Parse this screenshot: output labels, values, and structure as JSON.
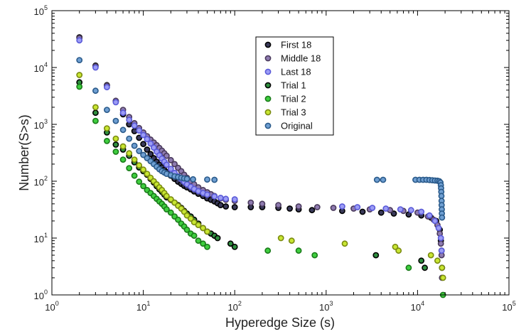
{
  "chart_data": {
    "type": "scatter",
    "title": "",
    "xlabel": "Hyperedge Size (s)",
    "ylabel": "Number(S>s)",
    "xscale": "log",
    "yscale": "log",
    "xlim": [
      1,
      100000
    ],
    "ylim": [
      1,
      100000
    ],
    "x_tick_labels": [
      {
        "base": "10",
        "exp": "0",
        "value": 1
      },
      {
        "base": "10",
        "exp": "1",
        "value": 10
      },
      {
        "base": "10",
        "exp": "2",
        "value": 100
      },
      {
        "base": "10",
        "exp": "3",
        "value": 1000
      },
      {
        "base": "10",
        "exp": "4",
        "value": 10000
      },
      {
        "base": "10",
        "exp": "5",
        "value": 100000
      }
    ],
    "y_tick_labels": [
      {
        "base": "10",
        "exp": "0",
        "value": 1
      },
      {
        "base": "10",
        "exp": "1",
        "value": 10
      },
      {
        "base": "10",
        "exp": "2",
        "value": 100
      },
      {
        "base": "10",
        "exp": "3",
        "value": 1000
      },
      {
        "base": "10",
        "exp": "4",
        "value": 10000
      },
      {
        "base": "10",
        "exp": "5",
        "value": 100000
      }
    ],
    "legend_position": "top-center",
    "grid": false,
    "series": [
      {
        "name": "First 18",
        "face": "#3a3a5a",
        "edge": "#000000",
        "points": [
          [
            2,
            34000
          ],
          [
            3,
            10800
          ],
          [
            4,
            4900
          ],
          [
            5,
            2550
          ],
          [
            6,
            1500
          ],
          [
            7,
            1000
          ],
          [
            8,
            760
          ],
          [
            9,
            580
          ],
          [
            10,
            450
          ],
          [
            11,
            360
          ],
          [
            12,
            300
          ],
          [
            13,
            255
          ],
          [
            14,
            220
          ],
          [
            15,
            195
          ],
          [
            16,
            175
          ],
          [
            17,
            158
          ],
          [
            18,
            145
          ],
          [
            20,
            125
          ],
          [
            22,
            110
          ],
          [
            24,
            98
          ],
          [
            26,
            90
          ],
          [
            28,
            83
          ],
          [
            30,
            78
          ],
          [
            33,
            72
          ],
          [
            36,
            66
          ],
          [
            40,
            60
          ],
          [
            45,
            55
          ],
          [
            50,
            50
          ],
          [
            55,
            47
          ],
          [
            60,
            44
          ],
          [
            65,
            41
          ],
          [
            70,
            38
          ],
          [
            80,
            36
          ],
          [
            100,
            35
          ],
          [
            150,
            35
          ],
          [
            200,
            35
          ],
          [
            300,
            34
          ],
          [
            400,
            33
          ],
          [
            500,
            32
          ],
          [
            700,
            31
          ],
          [
            1500,
            30
          ],
          [
            2500,
            29
          ],
          [
            4000,
            28
          ],
          [
            5500,
            27
          ],
          [
            8000,
            26
          ],
          [
            11000,
            25
          ],
          [
            14000,
            23
          ],
          [
            16000,
            20
          ],
          [
            17500,
            14
          ],
          [
            18000,
            9
          ],
          [
            18300,
            6
          ],
          [
            18500,
            3
          ]
        ]
      },
      {
        "name": "Middle 18",
        "face": "#8e7bb0",
        "edge": "#4a3a5c",
        "points": [
          [
            2,
            33000
          ],
          [
            3,
            10500
          ],
          [
            4,
            4800
          ],
          [
            5,
            2600
          ],
          [
            6,
            1800
          ],
          [
            7,
            1350
          ],
          [
            8,
            1050
          ],
          [
            9,
            860
          ],
          [
            10,
            720
          ],
          [
            11,
            620
          ],
          [
            12,
            540
          ],
          [
            13,
            480
          ],
          [
            14,
            430
          ],
          [
            15,
            385
          ],
          [
            16,
            345
          ],
          [
            17,
            310
          ],
          [
            18,
            280
          ],
          [
            20,
            235
          ],
          [
            22,
            200
          ],
          [
            24,
            172
          ],
          [
            26,
            150
          ],
          [
            28,
            130
          ],
          [
            30,
            115
          ],
          [
            33,
            100
          ],
          [
            36,
            88
          ],
          [
            40,
            78
          ],
          [
            45,
            70
          ],
          [
            50,
            64
          ],
          [
            55,
            59
          ],
          [
            60,
            55
          ],
          [
            70,
            50
          ],
          [
            80,
            47
          ],
          [
            100,
            45
          ],
          [
            150,
            42
          ],
          [
            200,
            40
          ],
          [
            300,
            38
          ],
          [
            500,
            36
          ],
          [
            800,
            35
          ],
          [
            1200,
            34
          ],
          [
            2000,
            33
          ],
          [
            3000,
            32
          ],
          [
            5000,
            31
          ],
          [
            7000,
            30
          ],
          [
            10000,
            28
          ],
          [
            13000,
            24
          ],
          [
            15000,
            21
          ],
          [
            16500,
            17
          ],
          [
            17500,
            12
          ],
          [
            18000,
            8
          ],
          [
            18300,
            5
          ],
          [
            18500,
            2
          ]
        ]
      },
      {
        "name": "Last 18",
        "face": "#9b9cf5",
        "edge": "#5a5ad8",
        "points": [
          [
            2,
            30000
          ],
          [
            3,
            10000
          ],
          [
            4,
            4500
          ],
          [
            5,
            2450
          ],
          [
            6,
            1600
          ],
          [
            7,
            1200
          ],
          [
            8,
            950
          ],
          [
            9,
            780
          ],
          [
            10,
            650
          ],
          [
            11,
            550
          ],
          [
            12,
            460
          ],
          [
            13,
            390
          ],
          [
            14,
            330
          ],
          [
            15,
            285
          ],
          [
            16,
            250
          ],
          [
            17,
            220
          ],
          [
            18,
            195
          ],
          [
            20,
            165
          ],
          [
            22,
            140
          ],
          [
            24,
            122
          ],
          [
            26,
            108
          ],
          [
            28,
            97
          ],
          [
            30,
            88
          ],
          [
            33,
            80
          ],
          [
            36,
            73
          ],
          [
            40,
            67
          ],
          [
            45,
            62
          ],
          [
            50,
            58
          ],
          [
            60,
            54
          ],
          [
            70,
            51
          ],
          [
            80,
            49
          ],
          [
            100,
            48
          ],
          [
            1500,
            36
          ],
          [
            2200,
            35
          ],
          [
            3200,
            34
          ],
          [
            4500,
            33
          ],
          [
            6500,
            32
          ],
          [
            8500,
            31
          ],
          [
            11000,
            29
          ],
          [
            13500,
            25
          ],
          [
            15500,
            20
          ],
          [
            17000,
            15
          ],
          [
            18000,
            10
          ],
          [
            18300,
            6
          ],
          [
            18500,
            3
          ]
        ]
      },
      {
        "name": "Trial 1",
        "face": "#2f8f3f",
        "edge": "#000000",
        "points": [
          [
            2,
            5500
          ],
          [
            3,
            1600
          ],
          [
            4,
            720
          ],
          [
            5,
            440
          ],
          [
            6,
            360
          ],
          [
            7,
            280
          ],
          [
            8,
            215
          ],
          [
            9,
            175
          ],
          [
            10,
            150
          ],
          [
            11,
            130
          ],
          [
            12,
            110
          ],
          [
            13,
            95
          ],
          [
            14,
            82
          ],
          [
            15,
            72
          ],
          [
            16,
            65
          ],
          [
            17,
            58
          ],
          [
            18,
            52
          ],
          [
            20,
            47
          ],
          [
            22,
            42
          ],
          [
            24,
            38
          ],
          [
            26,
            34
          ],
          [
            28,
            30
          ],
          [
            30,
            27
          ],
          [
            33,
            24
          ],
          [
            36,
            21
          ],
          [
            40,
            18
          ],
          [
            45,
            15
          ],
          [
            50,
            13
          ],
          [
            55,
            12
          ],
          [
            60,
            11
          ],
          [
            65,
            10
          ],
          [
            90,
            8
          ],
          [
            100,
            7
          ],
          [
            3500,
            5
          ],
          [
            11000,
            4
          ],
          [
            12000,
            3
          ]
        ]
      },
      {
        "name": "Trial 2",
        "face": "#3fce3f",
        "edge": "#1a7a1a",
        "points": [
          [
            2,
            4600
          ],
          [
            3,
            1150
          ],
          [
            4,
            510
          ],
          [
            5,
            330
          ],
          [
            6,
            240
          ],
          [
            7,
            170
          ],
          [
            8,
            125
          ],
          [
            9,
            98
          ],
          [
            10,
            82
          ],
          [
            11,
            70
          ],
          [
            12,
            62
          ],
          [
            13,
            55
          ],
          [
            14,
            49
          ],
          [
            15,
            44
          ],
          [
            16,
            40
          ],
          [
            17,
            36
          ],
          [
            18,
            32
          ],
          [
            20,
            28
          ],
          [
            22,
            24
          ],
          [
            24,
            21
          ],
          [
            26,
            18
          ],
          [
            28,
            16
          ],
          [
            30,
            14
          ],
          [
            33,
            12
          ],
          [
            36,
            11
          ],
          [
            40,
            9
          ],
          [
            45,
            8
          ],
          [
            50,
            7
          ],
          [
            230,
            6
          ],
          [
            500,
            6
          ],
          [
            750,
            5
          ],
          [
            8000,
            3
          ],
          [
            19000,
            1
          ]
        ]
      },
      {
        "name": "Trial 3",
        "face": "#c8e632",
        "edge": "#7a8a10",
        "points": [
          [
            2,
            7400
          ],
          [
            3,
            2000
          ],
          [
            4,
            850
          ],
          [
            5,
            560
          ],
          [
            6,
            410
          ],
          [
            7,
            310
          ],
          [
            8,
            240
          ],
          [
            9,
            190
          ],
          [
            10,
            160
          ],
          [
            11,
            135
          ],
          [
            12,
            115
          ],
          [
            13,
            100
          ],
          [
            14,
            88
          ],
          [
            15,
            78
          ],
          [
            16,
            70
          ],
          [
            17,
            62
          ],
          [
            18,
            55
          ],
          [
            20,
            48
          ],
          [
            22,
            42
          ],
          [
            24,
            37
          ],
          [
            26,
            33
          ],
          [
            28,
            29
          ],
          [
            30,
            25
          ],
          [
            33,
            22
          ],
          [
            36,
            19
          ],
          [
            40,
            17
          ],
          [
            45,
            15
          ],
          [
            50,
            13
          ],
          [
            320,
            10
          ],
          [
            420,
            9
          ],
          [
            1600,
            8
          ],
          [
            5700,
            7
          ],
          [
            6200,
            6
          ],
          [
            14000,
            5
          ],
          [
            16500,
            4
          ],
          [
            18500,
            3
          ],
          [
            19000,
            2
          ]
        ]
      },
      {
        "name": "Original",
        "face": "#6f9fd2",
        "edge": "#2a5a8a",
        "points": [
          [
            2,
            13500
          ],
          [
            3,
            3900
          ],
          [
            4,
            1800
          ],
          [
            5,
            1150
          ],
          [
            6,
            800
          ],
          [
            7,
            560
          ],
          [
            8,
            420
          ],
          [
            9,
            340
          ],
          [
            10,
            290
          ],
          [
            11,
            255
          ],
          [
            12,
            225
          ],
          [
            13,
            200
          ],
          [
            14,
            180
          ],
          [
            15,
            162
          ],
          [
            16,
            150
          ],
          [
            17,
            142
          ],
          [
            18,
            135
          ],
          [
            20,
            128
          ],
          [
            22,
            122
          ],
          [
            24,
            118
          ],
          [
            26,
            115
          ],
          [
            28,
            112
          ],
          [
            30,
            110
          ],
          [
            35,
            108
          ],
          [
            50,
            107
          ],
          [
            60,
            106
          ],
          [
            3600,
            106
          ],
          [
            4200,
            106
          ],
          [
            9500,
            106
          ],
          [
            10500,
            106
          ],
          [
            11500,
            106
          ],
          [
            12500,
            106
          ],
          [
            13500,
            105
          ],
          [
            14500,
            104
          ],
          [
            15500,
            103
          ],
          [
            16500,
            102
          ],
          [
            17300,
            100
          ],
          [
            17800,
            95
          ],
          [
            18000,
            85
          ],
          [
            18100,
            75
          ],
          [
            18200,
            65
          ],
          [
            18250,
            55
          ],
          [
            18300,
            45
          ],
          [
            18350,
            38
          ],
          [
            18400,
            32
          ],
          [
            18450,
            27
          ],
          [
            18500,
            23
          ]
        ]
      }
    ]
  }
}
